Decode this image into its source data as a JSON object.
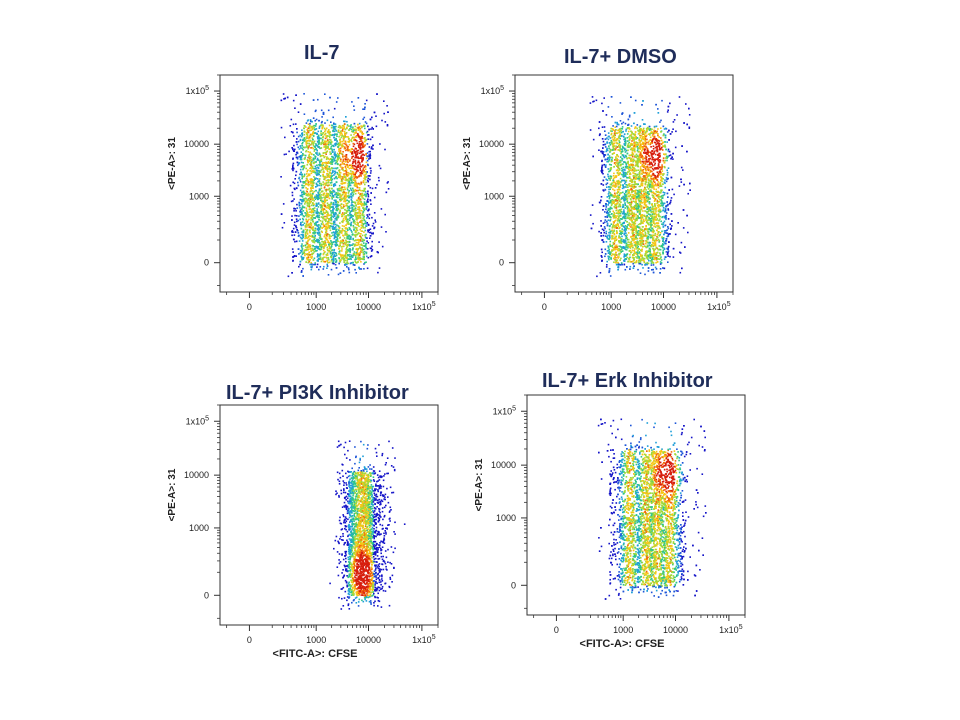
{
  "figure": {
    "y_axis_label": "<PE-A>: 31",
    "x_axis_label": "<FITC-A>: CFSE",
    "y_tick_labels": [
      "0",
      "1000",
      "10000",
      "1x10",
      "5"
    ],
    "x_tick_labels": [
      "0",
      "1000",
      "10000",
      "1x10",
      "5"
    ]
  },
  "chart_data": [
    {
      "type": "scatter",
      "title": "IL-7",
      "xlabel": "",
      "ylabel": "<PE-A>: 31",
      "x_ticks": [
        "0",
        "1000",
        "10000",
        "1x10^5"
      ],
      "y_ticks": [
        "0",
        "1000",
        "10000",
        "1x10^5"
      ],
      "scale": "biexponential",
      "style": "pseudocolor density",
      "population": {
        "x_range": [
          300,
          9000
        ],
        "y_range": [
          0,
          25000
        ]
      },
      "peaks_x": [
        700,
        1500,
        3200,
        6500
      ],
      "hotspot": {
        "x": 6000,
        "y": 6000
      }
    },
    {
      "type": "scatter",
      "title": "IL-7+ DMSO",
      "xlabel": "",
      "ylabel": "<PE-A>: 31",
      "x_ticks": [
        "0",
        "1000",
        "10000",
        "1x10^5"
      ],
      "y_ticks": [
        "0",
        "1000",
        "10000",
        "1x10^5"
      ],
      "scale": "biexponential",
      "style": "pseudocolor density",
      "population": {
        "x_range": [
          600,
          12000
        ],
        "y_range": [
          0,
          22000
        ]
      },
      "peaks_x": [
        1200,
        2500,
        4000,
        7000
      ],
      "hotspot": {
        "x": 7000,
        "y": 6000
      }
    },
    {
      "type": "scatter",
      "title": "IL-7+ PI3K Inhibitor",
      "xlabel": "<FITC-A>: CFSE",
      "ylabel": "<PE-A>: 31",
      "x_ticks": [
        "0",
        "1000",
        "10000",
        "1x10^5"
      ],
      "y_ticks": [
        "0",
        "1000",
        "10000",
        "1x10^5"
      ],
      "scale": "biexponential",
      "style": "pseudocolor density",
      "population": {
        "x_range": [
          4000,
          12000
        ],
        "y_range": [
          0,
          12000
        ]
      },
      "peaks_x": [
        7500
      ],
      "hotspot": {
        "x": 7500,
        "y": 100
      }
    },
    {
      "type": "scatter",
      "title": "IL-7+ Erk Inhibitor",
      "xlabel": "<FITC-A>: CFSE",
      "ylabel": "<PE-A>: 31",
      "x_ticks": [
        "0",
        "1000",
        "10000",
        "1x10^5"
      ],
      "y_ticks": [
        "0",
        "1000",
        "10000",
        "1x10^5"
      ],
      "scale": "biexponential",
      "style": "pseudocolor density",
      "population": {
        "x_range": [
          500,
          14000
        ],
        "y_range": [
          0,
          20000
        ]
      },
      "peaks_x": [
        1300,
        2700,
        4300,
        7500
      ],
      "hotspot": {
        "x": 7000,
        "y": 7000
      }
    }
  ]
}
